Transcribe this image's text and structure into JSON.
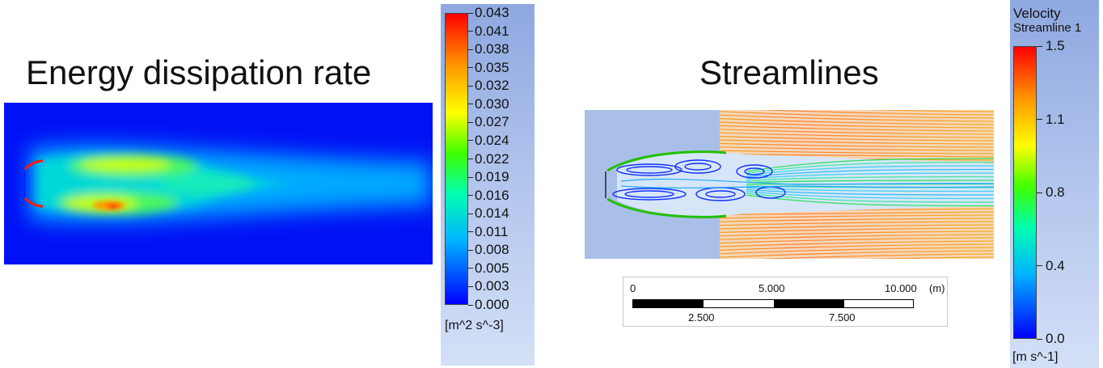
{
  "left_panel": {
    "title": "Energy dissipation rate",
    "colorbar": {
      "ticks": [
        "0.043",
        "0.041",
        "0.038",
        "0.035",
        "0.032",
        "0.030",
        "0.027",
        "0.024",
        "0.022",
        "0.019",
        "0.016",
        "0.014",
        "0.011",
        "0.008",
        "0.005",
        "0.003",
        "0.000"
      ],
      "units": "[m^2 s^-3]"
    }
  },
  "right_panel": {
    "title": "Streamlines",
    "legend_title_line1": "Velocity",
    "legend_title_line2": "Streamline 1",
    "colorbar": {
      "ticks": [
        "1.5",
        "1.1",
        "0.8",
        "0.4",
        "0.0"
      ],
      "units": "[m s^-1]"
    },
    "scale_bar": {
      "top_labels": [
        "0",
        "5.000",
        "10.000"
      ],
      "unit": "(m)",
      "bottom_labels": [
        "2.500",
        "7.500"
      ]
    }
  },
  "colors": {
    "jet": [
      "#0000ff",
      "#00b4ff",
      "#00ffb0",
      "#40ff00",
      "#ffff00",
      "#ff9000",
      "#ff0000"
    ],
    "legend_bg": "#b6c8ee"
  }
}
